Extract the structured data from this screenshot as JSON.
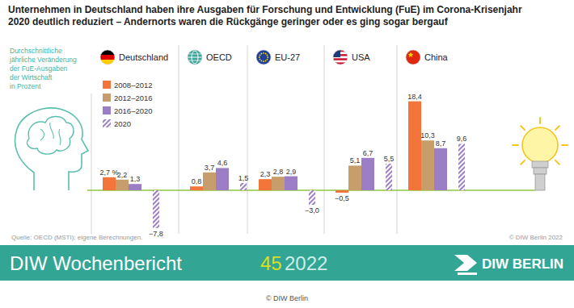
{
  "chart_data": {
    "type": "bar",
    "title": "Unternehmen in Deutschland haben ihre Ausgaben für Forschung und Entwicklung (FuE) im Corona-Krisenjahr\n2020 deutlich reduziert – Andernorts waren die Rückgänge geringer oder es ging sogar bergauf",
    "ylabel": "Durchschnittliche\njährliche Veränderung\nder FuE-Ausgaben\nder Wirtschaft\nin Prozent",
    "categories": [
      "Deutschland",
      "OECD",
      "EU-27",
      "USA",
      "China"
    ],
    "series": [
      {
        "name": "2008–2012",
        "color": "#f4753a",
        "values": [
          2.7,
          0.8,
          2.3,
          -0.5,
          18.4
        ],
        "value_labels": [
          "2,7 %",
          "0,8",
          "2,3",
          "−0,5",
          "18,4"
        ]
      },
      {
        "name": "2012–2016",
        "color": "#c89d6c",
        "values": [
          2.2,
          3.7,
          2.8,
          5.1,
          10.3
        ],
        "value_labels": [
          "2,2",
          "3,7",
          "2,8",
          "5,1",
          "10,3"
        ]
      },
      {
        "name": "2016–2020",
        "color": "#9b7ec6",
        "values": [
          1.3,
          4.6,
          2.9,
          6.7,
          8.7
        ],
        "value_labels": [
          "1,3",
          "4,6",
          "2,9",
          "6,7",
          "8,7"
        ]
      },
      {
        "name": "2020",
        "color": "#9b7ec6",
        "values": [
          -7.8,
          1.5,
          -3.0,
          5.5,
          9.6
        ],
        "value_labels": [
          "−7,8",
          "1,5",
          "−3,0",
          "5,5",
          "9,6"
        ]
      }
    ],
    "ylim": [
      -9,
      20
    ],
    "yticks": [
      0
    ],
    "tick_labels": false,
    "data_labels": true,
    "legend": "upper left",
    "source": "Quelle: OECD (MSTI); eigene Berechnungen.",
    "credit": "© DIW Berlin 2022"
  },
  "banner": {
    "publication": "DIW Wochenbericht",
    "issue": "45",
    "year": "2022",
    "logo": "DIW BERLIN",
    "footer": "© DIW Berlin"
  }
}
